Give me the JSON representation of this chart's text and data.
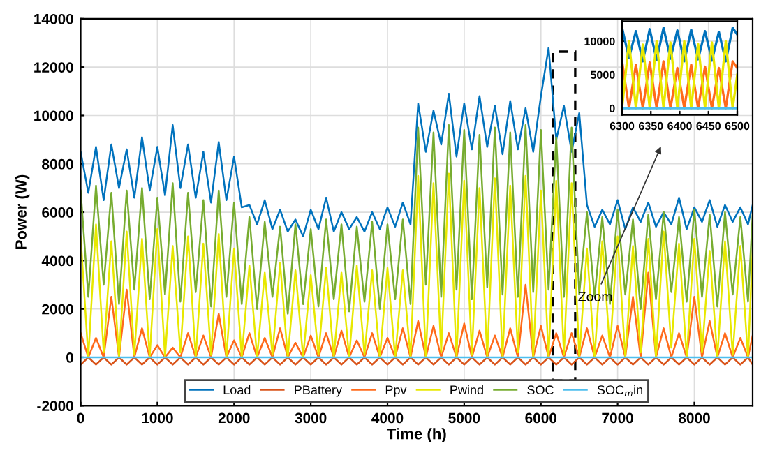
{
  "chart_data": [
    {
      "type": "line",
      "xlabel": "Time (h)",
      "ylabel": "Power (W)",
      "x": [
        0,
        100,
        200,
        300,
        400,
        500,
        600,
        700,
        800,
        900,
        1000,
        1100,
        1200,
        1300,
        1400,
        1500,
        1600,
        1700,
        1800,
        1900,
        2000,
        2100,
        2200,
        2300,
        2400,
        2500,
        2600,
        2700,
        2800,
        2900,
        3000,
        3100,
        3200,
        3300,
        3400,
        3500,
        3600,
        3700,
        3800,
        3900,
        4000,
        4100,
        4200,
        4300,
        4400,
        4500,
        4600,
        4700,
        4800,
        4900,
        5000,
        5100,
        5200,
        5300,
        5400,
        5500,
        5600,
        5700,
        5800,
        5900,
        6000,
        6100,
        6200,
        6300,
        6400,
        6500,
        6600,
        6700,
        6800,
        6900,
        7000,
        7100,
        7200,
        7300,
        7400,
        7500,
        7600,
        7700,
        7800,
        7900,
        8000,
        8100,
        8200,
        8300,
        8400,
        8500,
        8600,
        8700,
        8760
      ],
      "series": [
        {
          "name": "Load",
          "color": "#0072bd",
          "values": [
            8500,
            6800,
            8700,
            6500,
            8800,
            7000,
            8600,
            6600,
            9100,
            6900,
            8700,
            6700,
            9600,
            7000,
            8800,
            6600,
            8500,
            6400,
            8900,
            6500,
            8300,
            6200,
            6300,
            5500,
            6500,
            5300,
            6100,
            5200,
            5700,
            5000,
            6100,
            5300,
            6600,
            5200,
            6000,
            5300,
            5800,
            5200,
            6000,
            5300,
            6200,
            5400,
            6400,
            5500,
            10500,
            8500,
            10200,
            8800,
            10900,
            8300,
            10500,
            8600,
            10800,
            8700,
            10400,
            8400,
            10600,
            8600,
            10300,
            8500,
            10800,
            12800,
            9000,
            10400,
            8500,
            10100,
            6300,
            5400,
            6100,
            5500,
            6500,
            5300,
            6200,
            5600,
            6400,
            5400,
            6000,
            5500,
            6600,
            5300,
            6200,
            5600,
            6500,
            5400,
            6300,
            5600,
            6200,
            5500,
            6300
          ]
        },
        {
          "name": "PBattery",
          "color": "#d95319",
          "values": [
            -300,
            0,
            -300,
            0,
            -300,
            0,
            -300,
            0,
            -300,
            0,
            -300,
            0,
            -300,
            0,
            -300,
            0,
            -300,
            0,
            -300,
            0,
            -300,
            0,
            -300,
            0,
            -300,
            0,
            -300,
            0,
            -300,
            0,
            -300,
            0,
            -300,
            0,
            -300,
            0,
            -300,
            0,
            -300,
            0,
            -300,
            0,
            -300,
            0,
            -300,
            0,
            -300,
            0,
            -300,
            0,
            -300,
            0,
            -300,
            0,
            -300,
            0,
            -300,
            0,
            -300,
            0,
            -300,
            0,
            -300,
            0,
            -300,
            0,
            -300,
            0,
            -300,
            0,
            -300,
            0,
            -300,
            0,
            -300,
            0,
            -300,
            0,
            -300,
            0,
            -300,
            0,
            -300,
            0,
            -300,
            0,
            -300,
            0,
            -300
          ]
        },
        {
          "name": "Ppv",
          "color": "#ff6a1a",
          "values": [
            1000,
            0,
            800,
            0,
            2500,
            0,
            2800,
            0,
            1200,
            0,
            500,
            0,
            400,
            0,
            1000,
            0,
            900,
            0,
            1800,
            0,
            700,
            0,
            1000,
            0,
            800,
            0,
            1200,
            0,
            600,
            0,
            900,
            0,
            1000,
            0,
            1100,
            0,
            700,
            0,
            1000,
            0,
            800,
            0,
            1200,
            0,
            1500,
            0,
            1300,
            0,
            1000,
            0,
            1400,
            0,
            1100,
            0,
            900,
            0,
            1200,
            0,
            3000,
            0,
            1300,
            0,
            1000,
            0,
            1000,
            0,
            1200,
            0,
            900,
            0,
            1300,
            0,
            2500,
            0,
            3500,
            0,
            1200,
            0,
            1000,
            0,
            2500,
            0,
            1500,
            0,
            1000,
            0,
            800,
            0,
            900
          ]
        },
        {
          "name": "Pwind",
          "color": "#e8e800",
          "values": [
            5000,
            0,
            5500,
            200,
            4800,
            0,
            5200,
            100,
            4900,
            0,
            5300,
            0,
            4600,
            200,
            5000,
            0,
            4700,
            100,
            5100,
            0,
            4500,
            0,
            3800,
            0,
            3500,
            100,
            3900,
            0,
            3600,
            0,
            3400,
            100,
            3700,
            0,
            3500,
            0,
            3800,
            100,
            3600,
            0,
            3700,
            0,
            3600,
            0,
            7500,
            0,
            7200,
            200,
            7600,
            0,
            7300,
            100,
            7000,
            0,
            7400,
            0,
            7100,
            200,
            7500,
            0,
            6900,
            0,
            7300,
            100,
            7200,
            0,
            4500,
            0,
            4800,
            300,
            5000,
            0,
            4600,
            200,
            4900,
            0,
            5200,
            400,
            4700,
            0,
            4900,
            200,
            4400,
            0,
            4800,
            100,
            4600,
            0,
            4500
          ]
        },
        {
          "name": "SOC",
          "color": "#77ac30",
          "values": [
            6900,
            2500,
            7100,
            3000,
            6800,
            2200,
            6900,
            2800,
            7000,
            2400,
            6600,
            2600,
            7200,
            2300,
            6800,
            2700,
            6500,
            2100,
            6900,
            2500,
            6400,
            2200,
            5800,
            2000,
            5600,
            2500,
            5400,
            1800,
            5500,
            2200,
            5300,
            2100,
            5700,
            2400,
            5500,
            1900,
            5400,
            2300,
            5600,
            2000,
            5500,
            2400,
            5700,
            2200,
            9500,
            3000,
            9300,
            2500,
            9600,
            2800,
            9400,
            2400,
            9200,
            2900,
            9500,
            2600,
            9300,
            2500,
            9600,
            2700,
            9400,
            2800,
            9100,
            2500,
            9500,
            2600,
            6000,
            2500,
            5800,
            2200,
            6100,
            2600,
            5700,
            2000,
            5900,
            2400,
            6000,
            2700,
            5800,
            2300,
            6100,
            2500,
            5900,
            2100,
            6000,
            2600,
            5800,
            2300,
            5900
          ]
        },
        {
          "name": "SOC$_{m}$in",
          "color": "#4dbeee",
          "x": [
            0,
            8760
          ],
          "values": [
            0,
            0
          ]
        }
      ],
      "xlim": [
        0,
        8760
      ],
      "ylim": [
        -2000,
        14000
      ],
      "xticks": [
        0,
        1000,
        2000,
        3000,
        4000,
        5000,
        6000,
        7000,
        8000
      ],
      "yticks": [
        -2000,
        0,
        2000,
        4000,
        6000,
        8000,
        10000,
        12000,
        14000
      ],
      "grid": true,
      "legend": "bottom",
      "annotations": [
        "Zoom"
      ]
    },
    {
      "type": "line",
      "x": [
        6300,
        6312,
        6324,
        6336,
        6348,
        6360,
        6372,
        6384,
        6396,
        6408,
        6420,
        6432,
        6444,
        6456,
        6468,
        6480,
        6492,
        6500
      ],
      "series": [
        {
          "color": "#0072bd",
          "values": [
            12000,
            7500,
            11500,
            7000,
            11800,
            7200,
            12000,
            7400,
            11600,
            7000,
            11700,
            7300,
            11500,
            7100,
            11400,
            7000,
            12000,
            11000
          ]
        },
        {
          "color": "#ff6a1a",
          "values": [
            7000,
            0,
            6500,
            0,
            6800,
            0,
            7000,
            0,
            6000,
            0,
            6500,
            0,
            6200,
            0,
            6000,
            0,
            7000,
            6000
          ]
        },
        {
          "color": "#e8e800",
          "values": [
            0,
            10000,
            0,
            9500,
            0,
            10000,
            0,
            9800,
            0,
            10000,
            0,
            9600,
            0,
            9800,
            0,
            10000,
            0,
            5000
          ]
        },
        {
          "color": "#4dbeee",
          "values": [
            0,
            0,
            0,
            0,
            0,
            0,
            0,
            0,
            0,
            0,
            0,
            0,
            0,
            0,
            0,
            0,
            0,
            0
          ]
        }
      ],
      "xlim": [
        6300,
        6500
      ],
      "ylim": [
        -1000,
        13000
      ],
      "xticks": [
        6300,
        6350,
        6400,
        6450,
        6500
      ],
      "yticks": [
        0,
        5000,
        10000
      ],
      "grid": true
    }
  ]
}
